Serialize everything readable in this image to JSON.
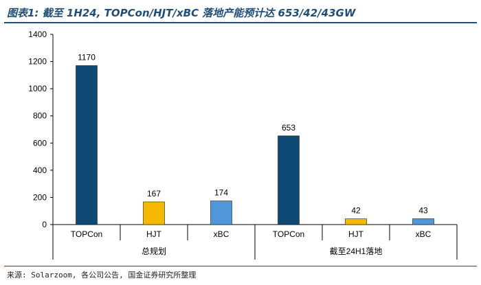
{
  "figure_title": "图表1: 截至 1H24, TOPCon/HJT/xBC 落地产能预计达 653/42/43GW",
  "source_note": "来源: Solarzoom, 各公司公告, 国金证券研究所整理",
  "chart_data": {
    "type": "bar",
    "title": "",
    "xlabel": "",
    "ylabel": "",
    "ylim": [
      0,
      1400
    ],
    "yticks": [
      0,
      200,
      400,
      600,
      800,
      1000,
      1200,
      1400
    ],
    "ytick_labels": [
      "0",
      "200",
      "400",
      "600",
      "800",
      "1000",
      "1200",
      "1400"
    ],
    "grid": false,
    "legend": "none",
    "groups": [
      {
        "label": "总规划",
        "categories": [
          "TOPCon",
          "HJT",
          "xBC"
        ],
        "values": [
          1170,
          167,
          174
        ],
        "value_labels": [
          "1170",
          "167",
          "174"
        ]
      },
      {
        "label": "截至24H1落地",
        "categories": [
          "TOPCon",
          "HJT",
          "xBC"
        ],
        "values": [
          653,
          42,
          43
        ],
        "value_labels": [
          "653",
          "42",
          "43"
        ]
      }
    ],
    "category_colors": {
      "TOPCon": "#0e4a73",
      "HJT": "#f5b800",
      "xBC": "#4f97d8"
    }
  }
}
